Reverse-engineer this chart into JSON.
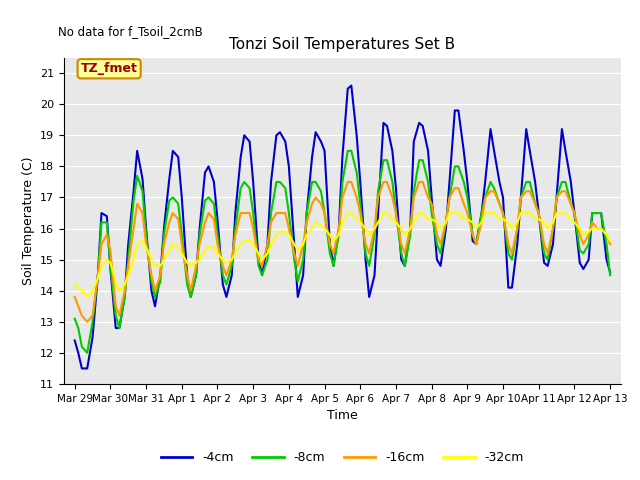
{
  "title": "Tonzi Soil Temperatures Set B",
  "no_data_text": "No data for f_Tsoil_2cmB",
  "annotation_text": "TZ_fmet",
  "xlabel": "Time",
  "ylabel": "Soil Temperature (C)",
  "ylim": [
    11.0,
    21.5
  ],
  "yticks": [
    11.0,
    12.0,
    13.0,
    14.0,
    15.0,
    16.0,
    17.0,
    18.0,
    19.0,
    20.0,
    21.0
  ],
  "background_color": "#e8e8e8",
  "line_colors": {
    "-4cm": "#0000cc",
    "-8cm": "#00cc00",
    "-16cm": "#ff9900",
    "-32cm": "#ffff00"
  },
  "x_tick_labels": [
    "Mar 29",
    "Mar 30",
    "Mar 31",
    "Apr 1",
    "Apr 2",
    "Apr 3",
    "Apr 4",
    "Apr 5",
    "Apr 6",
    "Apr 7",
    "Apr 8",
    "Apr 9",
    "Apr 10",
    "Apr 11",
    "Apr 12",
    "Apr 13"
  ],
  "series": {
    "-4cm": {
      "x": [
        0.0,
        0.1,
        0.2,
        0.35,
        0.5,
        0.65,
        0.75,
        0.9,
        1.0,
        1.15,
        1.25,
        1.4,
        1.5,
        1.65,
        1.75,
        1.9,
        2.0,
        2.15,
        2.25,
        2.4,
        2.5,
        2.65,
        2.75,
        2.9,
        3.0,
        3.15,
        3.25,
        3.4,
        3.5,
        3.65,
        3.75,
        3.9,
        4.0,
        4.15,
        4.25,
        4.4,
        4.5,
        4.65,
        4.75,
        4.9,
        5.0,
        5.15,
        5.25,
        5.4,
        5.5,
        5.65,
        5.75,
        5.9,
        6.0,
        6.15,
        6.25,
        6.4,
        6.5,
        6.65,
        6.75,
        6.9,
        7.0,
        7.15,
        7.25,
        7.4,
        7.5,
        7.65,
        7.75,
        7.9,
        8.0,
        8.15,
        8.25,
        8.4,
        8.5,
        8.65,
        8.75,
        8.9,
        9.0,
        9.15,
        9.25,
        9.4,
        9.5,
        9.65,
        9.75,
        9.9,
        10.0,
        10.15,
        10.25,
        10.4,
        10.5,
        10.65,
        10.75,
        10.9,
        11.0,
        11.15,
        11.25,
        11.4,
        11.5,
        11.65,
        11.75,
        11.9,
        12.0,
        12.15,
        12.25,
        12.4,
        12.5,
        12.65,
        12.75,
        12.9,
        13.0,
        13.15,
        13.25,
        13.4,
        13.5,
        13.65,
        13.75,
        13.9,
        14.0,
        14.15,
        14.25,
        14.4,
        14.5,
        14.65,
        14.75,
        14.9,
        15.0
      ],
      "y": [
        12.4,
        12.0,
        11.5,
        11.5,
        12.5,
        14.5,
        16.5,
        16.4,
        14.7,
        12.8,
        12.8,
        13.8,
        15.5,
        17.2,
        18.5,
        17.6,
        16.0,
        14.0,
        13.5,
        14.5,
        16.0,
        17.6,
        18.5,
        18.3,
        17.0,
        14.5,
        13.8,
        14.5,
        16.0,
        17.8,
        18.0,
        17.5,
        16.3,
        14.2,
        13.8,
        14.5,
        16.5,
        18.3,
        19.0,
        18.8,
        17.5,
        15.0,
        14.5,
        15.5,
        17.5,
        19.0,
        19.1,
        18.8,
        18.0,
        15.5,
        13.8,
        14.5,
        16.5,
        18.3,
        19.1,
        18.8,
        18.5,
        15.5,
        14.8,
        16.0,
        18.3,
        20.5,
        20.6,
        19.0,
        17.5,
        15.0,
        13.8,
        14.5,
        16.5,
        19.4,
        19.3,
        18.5,
        17.3,
        15.0,
        14.8,
        16.0,
        18.8,
        19.4,
        19.3,
        18.5,
        17.0,
        15.0,
        14.8,
        16.0,
        17.5,
        19.8,
        19.8,
        18.5,
        17.5,
        15.6,
        15.5,
        16.5,
        17.5,
        19.2,
        18.5,
        17.5,
        17.0,
        14.1,
        14.1,
        15.5,
        17.0,
        19.2,
        18.5,
        17.5,
        16.5,
        14.9,
        14.8,
        15.5,
        17.0,
        19.2,
        18.5,
        17.5,
        16.5,
        14.9,
        14.7,
        15.0,
        16.5,
        16.5,
        16.5,
        15.0,
        14.6
      ]
    },
    "-8cm": {
      "x": [
        0.0,
        0.1,
        0.2,
        0.35,
        0.5,
        0.65,
        0.75,
        0.9,
        1.0,
        1.15,
        1.25,
        1.4,
        1.5,
        1.65,
        1.75,
        1.9,
        2.0,
        2.15,
        2.25,
        2.4,
        2.5,
        2.65,
        2.75,
        2.9,
        3.0,
        3.15,
        3.25,
        3.4,
        3.5,
        3.65,
        3.75,
        3.9,
        4.0,
        4.15,
        4.25,
        4.4,
        4.5,
        4.65,
        4.75,
        4.9,
        5.0,
        5.15,
        5.25,
        5.4,
        5.5,
        5.65,
        5.75,
        5.9,
        6.0,
        6.15,
        6.25,
        6.4,
        6.5,
        6.65,
        6.75,
        6.9,
        7.0,
        7.15,
        7.25,
        7.4,
        7.5,
        7.65,
        7.75,
        7.9,
        8.0,
        8.15,
        8.25,
        8.4,
        8.5,
        8.65,
        8.75,
        8.9,
        9.0,
        9.15,
        9.25,
        9.4,
        9.5,
        9.65,
        9.75,
        9.9,
        10.0,
        10.15,
        10.25,
        10.4,
        10.5,
        10.65,
        10.75,
        10.9,
        11.0,
        11.15,
        11.25,
        11.4,
        11.5,
        11.65,
        11.75,
        11.9,
        12.0,
        12.15,
        12.25,
        12.4,
        12.5,
        12.65,
        12.75,
        12.9,
        13.0,
        13.15,
        13.25,
        13.4,
        13.5,
        13.65,
        13.75,
        13.9,
        14.0,
        14.15,
        14.25,
        14.4,
        14.5,
        14.65,
        14.75,
        14.9,
        15.0
      ],
      "y": [
        13.1,
        12.8,
        12.2,
        12.0,
        13.0,
        14.5,
        16.2,
        16.2,
        14.8,
        13.2,
        12.8,
        13.8,
        15.0,
        16.9,
        17.7,
        17.2,
        15.8,
        14.3,
        13.8,
        14.3,
        15.8,
        16.9,
        17.0,
        16.8,
        15.8,
        14.2,
        13.8,
        14.5,
        15.8,
        16.9,
        17.0,
        16.8,
        15.8,
        14.5,
        14.2,
        14.8,
        16.0,
        17.3,
        17.5,
        17.3,
        16.5,
        14.8,
        14.5,
        15.0,
        16.5,
        17.5,
        17.5,
        17.3,
        16.5,
        15.0,
        14.3,
        15.0,
        16.5,
        17.5,
        17.5,
        17.2,
        16.5,
        15.2,
        14.8,
        15.8,
        17.5,
        18.5,
        18.5,
        17.8,
        16.8,
        15.2,
        14.8,
        15.8,
        17.2,
        18.2,
        18.2,
        17.5,
        16.5,
        15.2,
        14.8,
        15.8,
        17.2,
        18.2,
        18.2,
        17.5,
        16.5,
        15.5,
        15.2,
        16.2,
        17.0,
        18.0,
        18.0,
        17.5,
        17.0,
        15.8,
        15.5,
        16.5,
        17.0,
        17.5,
        17.3,
        16.8,
        16.5,
        15.2,
        15.0,
        16.0,
        17.0,
        17.5,
        17.5,
        16.8,
        16.5,
        15.2,
        15.0,
        16.0,
        17.0,
        17.5,
        17.5,
        16.8,
        16.5,
        15.3,
        15.2,
        15.5,
        16.5,
        16.5,
        16.5,
        15.5,
        14.5
      ]
    },
    "-16cm": {
      "x": [
        0.0,
        0.1,
        0.2,
        0.35,
        0.5,
        0.65,
        0.75,
        0.9,
        1.0,
        1.15,
        1.25,
        1.4,
        1.5,
        1.65,
        1.75,
        1.9,
        2.0,
        2.15,
        2.25,
        2.4,
        2.5,
        2.65,
        2.75,
        2.9,
        3.0,
        3.15,
        3.25,
        3.4,
        3.5,
        3.65,
        3.75,
        3.9,
        4.0,
        4.15,
        4.25,
        4.4,
        4.5,
        4.65,
        4.75,
        4.9,
        5.0,
        5.15,
        5.25,
        5.4,
        5.5,
        5.65,
        5.75,
        5.9,
        6.0,
        6.15,
        6.25,
        6.4,
        6.5,
        6.65,
        6.75,
        6.9,
        7.0,
        7.15,
        7.25,
        7.4,
        7.5,
        7.65,
        7.75,
        7.9,
        8.0,
        8.15,
        8.25,
        8.4,
        8.5,
        8.65,
        8.75,
        8.9,
        9.0,
        9.15,
        9.25,
        9.4,
        9.5,
        9.65,
        9.75,
        9.9,
        10.0,
        10.15,
        10.25,
        10.4,
        10.5,
        10.65,
        10.75,
        10.9,
        11.0,
        11.15,
        11.25,
        11.4,
        11.5,
        11.65,
        11.75,
        11.9,
        12.0,
        12.15,
        12.25,
        12.4,
        12.5,
        12.65,
        12.75,
        12.9,
        13.0,
        13.15,
        13.25,
        13.4,
        13.5,
        13.65,
        13.75,
        13.9,
        14.0,
        14.15,
        14.25,
        14.4,
        14.5,
        14.65,
        14.75,
        14.9,
        15.0
      ],
      "y": [
        13.8,
        13.5,
        13.2,
        13.0,
        13.2,
        14.5,
        15.5,
        15.8,
        15.3,
        13.5,
        13.2,
        14.0,
        14.8,
        16.0,
        16.8,
        16.5,
        15.5,
        14.5,
        14.0,
        14.5,
        15.5,
        16.2,
        16.5,
        16.3,
        15.5,
        14.5,
        14.0,
        14.8,
        15.5,
        16.2,
        16.5,
        16.3,
        15.5,
        14.8,
        14.5,
        15.0,
        15.8,
        16.5,
        16.5,
        16.5,
        16.0,
        15.0,
        14.8,
        15.5,
        16.2,
        16.5,
        16.5,
        16.5,
        16.0,
        15.2,
        14.8,
        15.5,
        16.2,
        16.8,
        17.0,
        16.8,
        16.5,
        15.5,
        15.2,
        16.0,
        17.0,
        17.5,
        17.5,
        17.0,
        16.5,
        15.5,
        15.2,
        16.0,
        17.0,
        17.5,
        17.5,
        17.0,
        16.5,
        15.5,
        15.2,
        16.0,
        17.0,
        17.5,
        17.5,
        17.0,
        16.8,
        15.8,
        15.5,
        16.2,
        17.0,
        17.3,
        17.3,
        16.8,
        16.5,
        15.8,
        15.5,
        16.2,
        17.0,
        17.2,
        17.2,
        16.8,
        16.5,
        15.5,
        15.2,
        16.0,
        17.0,
        17.2,
        17.2,
        16.8,
        16.5,
        15.5,
        15.2,
        16.0,
        17.0,
        17.2,
        17.2,
        16.8,
        16.5,
        15.8,
        15.5,
        15.8,
        16.2,
        16.0,
        16.0,
        15.8,
        15.5
      ]
    },
    "-32cm": {
      "x": [
        0.0,
        0.1,
        0.2,
        0.35,
        0.5,
        0.65,
        0.75,
        0.9,
        1.0,
        1.15,
        1.25,
        1.4,
        1.5,
        1.65,
        1.75,
        1.9,
        2.0,
        2.15,
        2.25,
        2.4,
        2.5,
        2.65,
        2.75,
        2.9,
        3.0,
        3.15,
        3.25,
        3.4,
        3.5,
        3.65,
        3.75,
        3.9,
        4.0,
        4.15,
        4.25,
        4.4,
        4.5,
        4.65,
        4.75,
        4.9,
        5.0,
        5.15,
        5.25,
        5.4,
        5.5,
        5.65,
        5.75,
        5.9,
        6.0,
        6.15,
        6.25,
        6.4,
        6.5,
        6.65,
        6.75,
        6.9,
        7.0,
        7.15,
        7.25,
        7.4,
        7.5,
        7.65,
        7.75,
        7.9,
        8.0,
        8.15,
        8.25,
        8.4,
        8.5,
        8.65,
        8.75,
        8.9,
        9.0,
        9.15,
        9.25,
        9.4,
        9.5,
        9.65,
        9.75,
        9.9,
        10.0,
        10.15,
        10.25,
        10.4,
        10.5,
        10.65,
        10.75,
        10.9,
        11.0,
        11.15,
        11.25,
        11.4,
        11.5,
        11.65,
        11.75,
        11.9,
        12.0,
        12.15,
        12.25,
        12.4,
        12.5,
        12.65,
        12.75,
        12.9,
        13.0,
        13.15,
        13.25,
        13.4,
        13.5,
        13.65,
        13.75,
        13.9,
        14.0,
        14.15,
        14.25,
        14.4,
        14.5,
        14.65,
        14.75,
        14.9,
        15.0
      ],
      "y": [
        14.2,
        14.1,
        14.0,
        13.8,
        14.0,
        14.4,
        14.8,
        15.0,
        14.9,
        14.3,
        14.0,
        14.2,
        14.5,
        15.0,
        15.5,
        15.6,
        15.4,
        15.0,
        14.8,
        14.8,
        15.0,
        15.3,
        15.5,
        15.4,
        15.2,
        14.9,
        14.8,
        14.9,
        15.0,
        15.3,
        15.4,
        15.4,
        15.2,
        15.0,
        14.9,
        15.0,
        15.2,
        15.5,
        15.6,
        15.6,
        15.5,
        15.2,
        15.0,
        15.2,
        15.5,
        15.8,
        15.9,
        15.9,
        15.8,
        15.5,
        15.3,
        15.5,
        15.8,
        16.0,
        16.2,
        16.1,
        16.0,
        15.8,
        15.6,
        15.8,
        16.2,
        16.5,
        16.5,
        16.3,
        16.2,
        16.0,
        15.8,
        16.0,
        16.2,
        16.5,
        16.5,
        16.3,
        16.2,
        16.0,
        15.8,
        16.0,
        16.2,
        16.5,
        16.5,
        16.3,
        16.3,
        16.2,
        16.0,
        16.2,
        16.5,
        16.5,
        16.5,
        16.3,
        16.3,
        16.2,
        16.0,
        16.2,
        16.5,
        16.5,
        16.5,
        16.3,
        16.3,
        16.2,
        16.0,
        16.2,
        16.5,
        16.5,
        16.5,
        16.3,
        16.3,
        16.2,
        16.0,
        16.2,
        16.5,
        16.5,
        16.5,
        16.3,
        16.2,
        16.0,
        15.8,
        15.9,
        16.0,
        16.0,
        16.0,
        15.8,
        15.6
      ]
    }
  }
}
